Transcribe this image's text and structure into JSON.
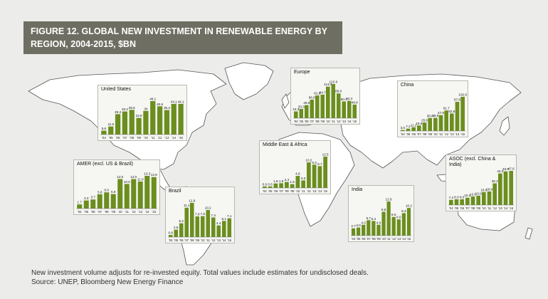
{
  "figure": {
    "title_line1": "FIGURE 12. GLOBAL NEW INVESTMENT IN RENEWABLE ENERGY BY",
    "title_line2": "REGION, 2004-2015, $BN"
  },
  "footer": {
    "note": "New investment volume adjusts for re-invested equity.  Total values include estimates for undisclosed deals.",
    "source": "Source: UNEP, Bloomberg New Energy Finance"
  },
  "colors": {
    "bar": "#6b8e1e",
    "banner": "#6e6e62",
    "land": "#ffffff",
    "coast": "#555555"
  },
  "chart_data": [
    {
      "type": "bar",
      "title": "United States",
      "categories": [
        "'04",
        "'05",
        "'06",
        "'07",
        "'08",
        "'09",
        "'10",
        "'11",
        "'12",
        "'13",
        "'14",
        "'15"
      ],
      "values": [
        5.6,
        11.6,
        29.3,
        33.2,
        35.5,
        23.9,
        34.0,
        48.1,
        40.6,
        35.2,
        44.1,
        44.1
      ],
      "value_labels": [
        "5.6",
        "11.6",
        "29.3",
        "33.2",
        "35.5",
        "23.9",
        "34",
        "48.1",
        "40.6",
        "35.2",
        "44.1",
        "44.1"
      ]
    },
    {
      "type": "bar",
      "title": "Europe",
      "categories": [
        "'04",
        "'05",
        "'06",
        "'07",
        "'08",
        "'09",
        "'10",
        "'11",
        "'12",
        "'13",
        "'14",
        "'15"
      ],
      "values": [
        24.3,
        33.3,
        46.9,
        66.6,
        81.8,
        84.7,
        113.4,
        122.9,
        89.0,
        60.3,
        62.4,
        48.8
      ],
      "value_labels": [
        "24.3",
        "33.3",
        "46.9",
        "66.6",
        "81.8",
        "84.7",
        "113.4",
        "122.9",
        "89.0",
        "60.3",
        "62.4",
        "48.8"
      ]
    },
    {
      "type": "bar",
      "title": "China",
      "categories": [
        "'04",
        "'05",
        "'06",
        "'07",
        "'08",
        "'09",
        "'10",
        "'11",
        "'12",
        "'13",
        "'14",
        "'15"
      ],
      "values": [
        3.0,
        7.2,
        11.2,
        16.6,
        25.6,
        38.8,
        39.6,
        47.8,
        61.7,
        52.8,
        87.8,
        102.9
      ],
      "value_labels": [
        "3.0",
        "7.2",
        "11.2",
        "16.6",
        "25.6",
        "38.8",
        "39.6",
        "47.8",
        "61.7",
        "52.8",
        "87.8",
        "102.9"
      ]
    },
    {
      "type": "bar",
      "title": "Middle East & Africa",
      "categories": [
        "'04",
        "'05",
        "'06",
        "'07",
        "'08",
        "'09",
        "'10",
        "'11",
        "'12",
        "'13",
        "'14",
        "'15"
      ],
      "values": [
        0.6,
        0.6,
        1.8,
        1.9,
        2.4,
        1.5,
        4.8,
        3.0,
        10.2,
        9.3,
        8.7,
        12.5
      ],
      "value_labels": [
        "0.6",
        "0.6",
        "1.8",
        "1.9",
        "2.4",
        "1.5",
        "4.8",
        "3.0",
        "10.2",
        "9.3",
        "8.7",
        "12.5"
      ]
    },
    {
      "type": "bar",
      "title": "AMER (excl. US & Brazil)",
      "categories": [
        "'04",
        "'05",
        "'06",
        "'07",
        "'08",
        "'09",
        "'10",
        "'11",
        "'12",
        "'13",
        "'14",
        "'15"
      ],
      "values": [
        1.7,
        3.3,
        3.7,
        5.8,
        6.6,
        5.9,
        12.0,
        10.0,
        12.0,
        11.0,
        13.3,
        12.8
      ],
      "value_labels": [
        "1.7",
        "3.3",
        "3.7",
        "5.8",
        "6.6",
        "5.9",
        "12.0",
        "10.0",
        "12.0",
        "11.0",
        "13.3",
        "12.8"
      ]
    },
    {
      "type": "bar",
      "title": "Brazil",
      "categories": [
        "'04",
        "'05",
        "'06",
        "'07",
        "'08",
        "'09",
        "'10",
        "'11",
        "'12",
        "'13",
        "'14",
        "'15"
      ],
      "values": [
        0.8,
        2.8,
        5.2,
        11.1,
        12.9,
        7.8,
        7.9,
        10.2,
        7.4,
        4.4,
        6.1,
        7.1
      ],
      "value_labels": [
        "0.8",
        "2.8",
        "5.2",
        "11.1",
        "12.9",
        "7.8",
        "7.9",
        "10.2",
        "7.4",
        "4.4",
        "6.1",
        "7.1"
      ]
    },
    {
      "type": "bar",
      "title": "India",
      "categories": [
        "'04",
        "'05",
        "'06",
        "'07",
        "'08",
        "'09",
        "'10",
        "'11",
        "'12",
        "'13",
        "'14",
        "'15"
      ],
      "values": [
        2.7,
        3.0,
        4.0,
        5.7,
        5.4,
        4.0,
        8.8,
        12.6,
        6.9,
        6.0,
        8.3,
        10.2
      ],
      "value_labels": [
        "2.7",
        "3.0",
        "4.0",
        "5.7",
        "5.4",
        "4.0",
        "8.8",
        "12.6",
        "6.9",
        "6.0",
        "8.3",
        "10.2"
      ]
    },
    {
      "type": "bar",
      "title": "ASOC (excl. China & India)",
      "categories": [
        "'04",
        "'05",
        "'06",
        "'07",
        "'08",
        "'09",
        "'10",
        "'11",
        "'12",
        "'13",
        "'14",
        "'15"
      ],
      "values": [
        7.2,
        8.0,
        8.0,
        10.2,
        12.0,
        13.0,
        18.0,
        18.9,
        30.2,
        44.0,
        46.9,
        47.6
      ],
      "value_labels": [
        "7.2",
        "8.0",
        "8.0",
        "10.2",
        "12.0",
        "13.0",
        "18.0",
        "18.9",
        "30.2",
        "44.0",
        "46.9",
        "47.6"
      ]
    }
  ]
}
